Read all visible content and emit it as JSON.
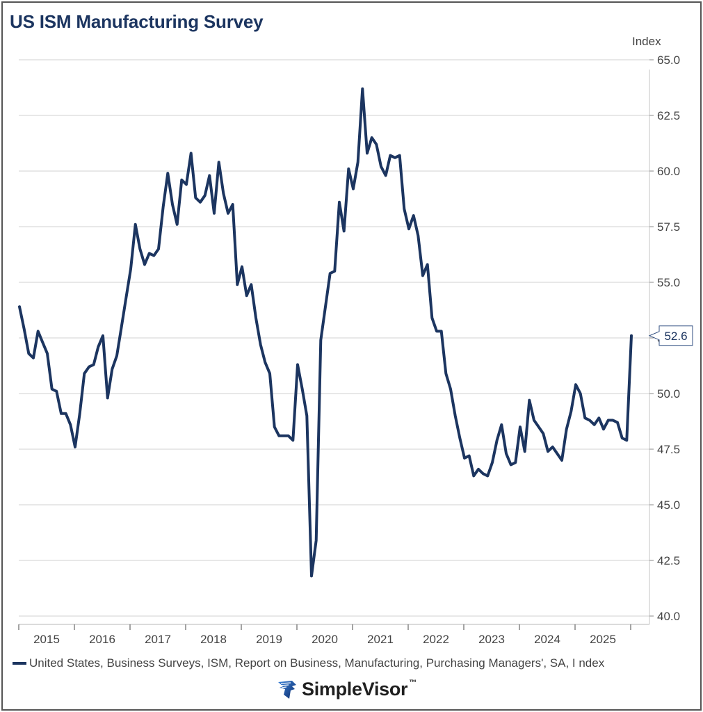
{
  "chart_data": {
    "type": "line",
    "title": "US ISM Manufacturing Survey",
    "xlabel": "",
    "ylabel": "Index",
    "ylim": [
      40.0,
      65.0
    ],
    "y_ticks": [
      "65.0",
      "62.5",
      "60.0",
      "57.5",
      "55.0",
      "52.5",
      "50.0",
      "47.5",
      "45.0",
      "42.5",
      "40.0"
    ],
    "y_tick_values": [
      65.0,
      62.5,
      60.0,
      57.5,
      55.0,
      52.5,
      50.0,
      47.5,
      45.0,
      42.5,
      40.0
    ],
    "x_ticks": [
      "2015",
      "2016",
      "2017",
      "2018",
      "2019",
      "2020",
      "2021",
      "2022",
      "2023",
      "2024",
      "2025"
    ],
    "x_start": "2015-01",
    "x_end": "2026-01",
    "grid": true,
    "legend_position": "bottom",
    "series": [
      {
        "name": "United States, Business Surveys, ISM, Report on Business, Manufacturing, Purchasing Managers', SA, I ndex",
        "color": "#1c3560",
        "frequency": "monthly",
        "values": [
          53.9,
          52.9,
          51.8,
          51.6,
          52.8,
          52.3,
          51.8,
          50.2,
          50.1,
          49.1,
          49.1,
          48.6,
          47.6,
          49.1,
          50.9,
          51.2,
          51.3,
          52.1,
          52.6,
          49.8,
          51.1,
          51.7,
          53.0,
          54.3,
          55.6,
          57.6,
          56.5,
          55.8,
          56.3,
          56.2,
          56.5,
          58.4,
          59.9,
          58.5,
          57.6,
          59.6,
          59.4,
          60.8,
          58.8,
          58.6,
          58.9,
          59.8,
          58.1,
          60.4,
          59.0,
          58.1,
          58.5,
          54.9,
          55.7,
          54.4,
          54.9,
          53.4,
          52.2,
          51.4,
          50.9,
          48.5,
          48.1,
          48.1,
          48.1,
          47.9,
          51.3,
          50.2,
          49.0,
          41.8,
          43.4,
          52.4,
          53.9,
          55.4,
          55.5,
          58.6,
          57.3,
          60.1,
          59.2,
          60.4,
          63.7,
          60.8,
          61.5,
          61.2,
          60.2,
          59.8,
          60.7,
          60.6,
          60.7,
          58.3,
          57.4,
          58.0,
          57.1,
          55.3,
          55.8,
          53.4,
          52.8,
          52.8,
          50.9,
          50.2,
          49.0,
          48.0,
          47.1,
          47.2,
          46.3,
          46.6,
          46.4,
          46.3,
          46.9,
          47.9,
          48.6,
          47.3,
          46.8,
          46.9,
          48.5,
          47.4,
          49.7,
          48.8,
          48.5,
          48.2,
          47.4,
          47.6,
          47.3,
          47.0,
          48.4,
          49.2,
          50.4,
          50.0,
          48.9,
          48.8,
          48.6,
          48.9,
          48.4,
          48.8,
          48.8,
          48.7,
          48.0,
          47.9,
          52.6
        ]
      }
    ],
    "last_value_label": "52.6"
  },
  "branding": {
    "logo_text": "SimpleVisor",
    "trademark": "™",
    "logo_icon": "eagle-shield-icon"
  }
}
